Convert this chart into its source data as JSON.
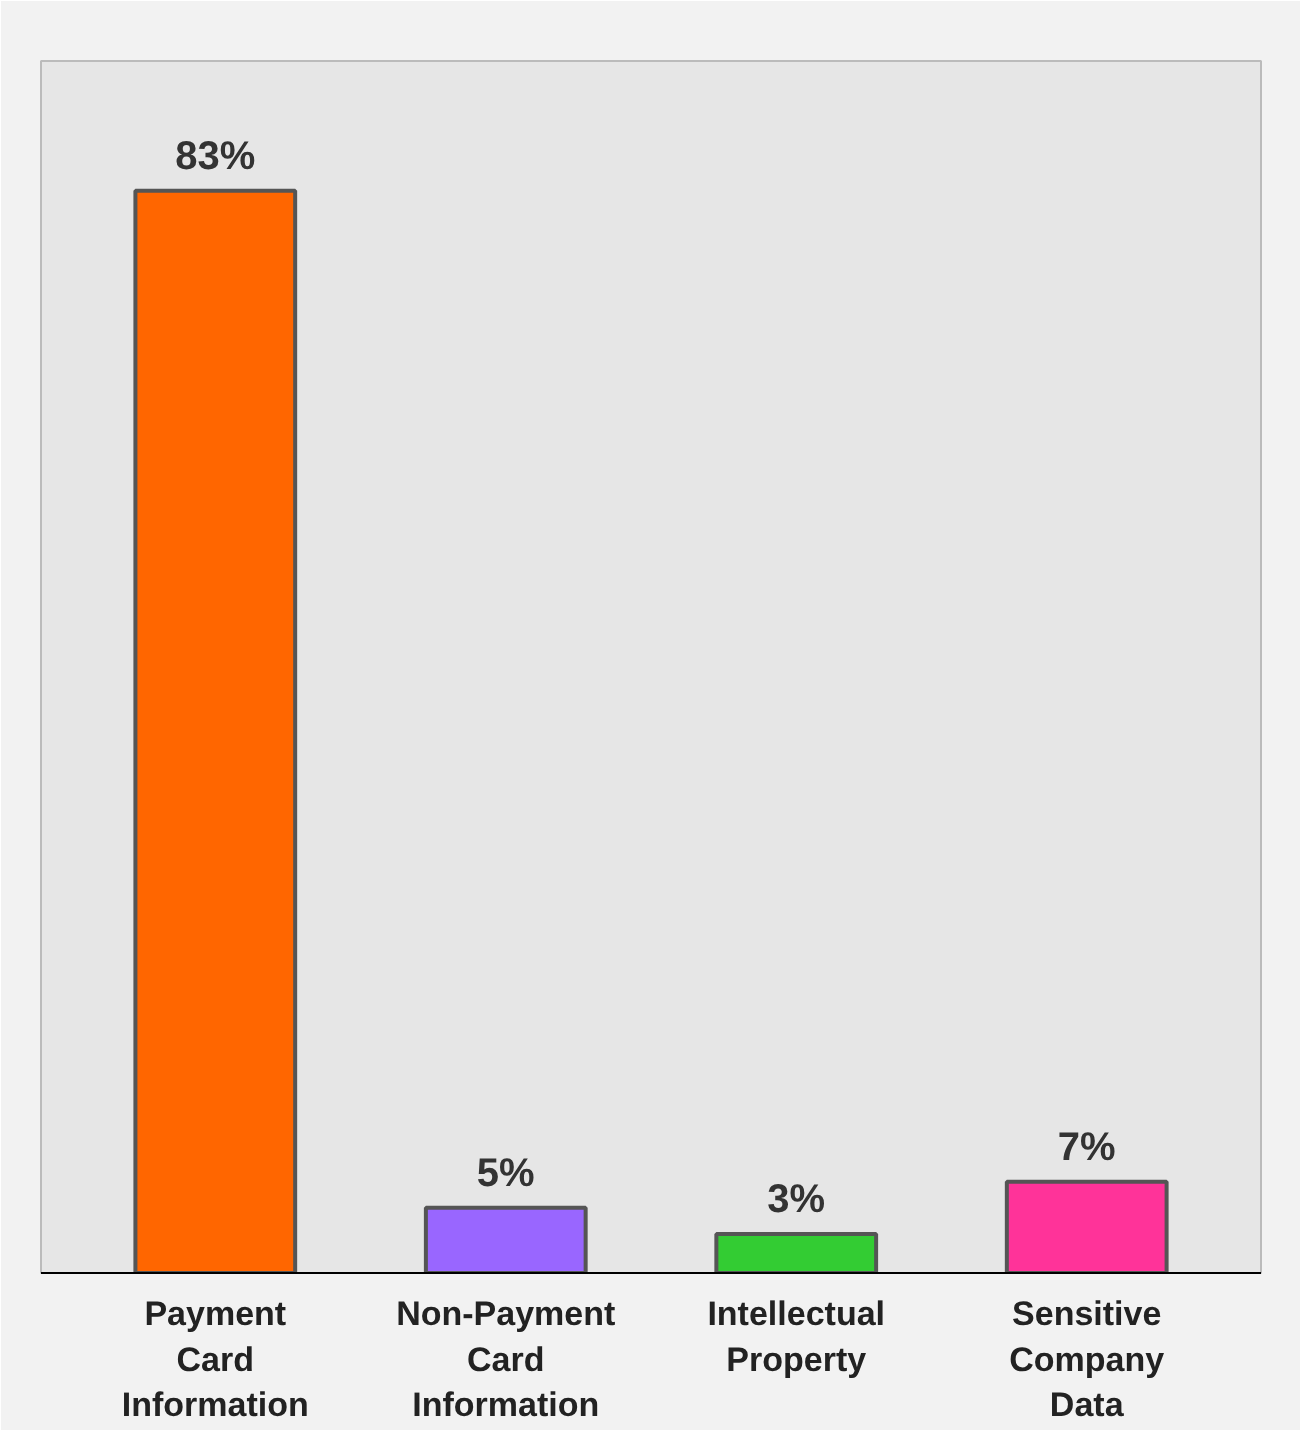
{
  "chart_data": {
    "type": "bar",
    "categories": [
      "Payment Card Information",
      "Non-Payment Card Information",
      "Intellectual Property",
      "Sensitive Company Data"
    ],
    "values": [
      83,
      5,
      3,
      7
    ],
    "colors": [
      "#ff6600",
      "#9966ff",
      "#33cc33",
      "#ff3399"
    ],
    "value_labels": [
      "83%",
      "5%",
      "3%",
      "7%"
    ],
    "tick_labels": "x",
    "grid": false
  }
}
